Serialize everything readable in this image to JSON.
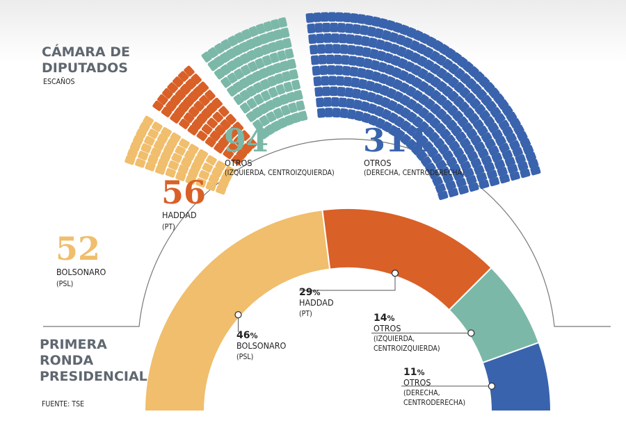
{
  "chamber": {
    "title_line1": "CÁMARA DE",
    "title_line2": "DIPUTADOS",
    "subtitle": "ESCAÑOS"
  },
  "presidential": {
    "title_line1": "PRIMERA",
    "title_line2": "RONDA",
    "title_line3": "PRESIDENCIAL"
  },
  "source": "FUENTE: TSE",
  "colors": {
    "bolsonaro": "#f0be6c",
    "haddad": "#d96027",
    "otros_izq": "#7bb8a8",
    "otros_der": "#3a63ad"
  },
  "chart_data": [
    {
      "type": "pie",
      "title": "CÁMARA DE DIPUTADOS",
      "subtitle": "ESCAÑOS",
      "layout": "parliament-hemicycle",
      "categories": [
        "BOLSONARO (PSL)",
        "HADDAD (PT)",
        "OTROS (IZQUIERDA, CENTROIZQUIERDA)",
        "OTROS (DERECHA, CENTRODERECHA)"
      ],
      "values": [
        52,
        56,
        94,
        311
      ],
      "labels": [
        {
          "value": "52",
          "name": "BOLSONARO",
          "sub": "(PSL)"
        },
        {
          "value": "56",
          "name": "HADDAD",
          "sub": "(PT)"
        },
        {
          "value": "94",
          "name": "OTROS",
          "sub": "(IZQUIERDA, CENTROIZQUIERDA)"
        },
        {
          "value": "311",
          "name": "OTROS",
          "sub": "(DERECHA, CENTRODERECHA)"
        }
      ]
    },
    {
      "type": "pie",
      "title": "PRIMERA RONDA PRESIDENCIAL",
      "layout": "half-donut",
      "categories": [
        "BOLSONARO (PSL)",
        "HADDAD (PT)",
        "OTROS (IZQUIERDA, CENTROIZQUIERDA)",
        "OTROS (DERECHA, CENTRODERECHA)"
      ],
      "values": [
        46,
        29,
        14,
        11
      ],
      "unit": "%",
      "labels": [
        {
          "value": "46",
          "name": "BOLSONARO",
          "sub": "(PSL)"
        },
        {
          "value": "29",
          "name": "HADDAD",
          "sub": "(PT)"
        },
        {
          "value": "14",
          "name": "OTROS",
          "sub1": "(IZQUIERDA,",
          "sub2": "CENTROIZQUIERDA)"
        },
        {
          "value": "11",
          "name": "OTROS",
          "sub1": "(DERECHA,",
          "sub2": "CENTRODERECHA)"
        }
      ]
    }
  ]
}
